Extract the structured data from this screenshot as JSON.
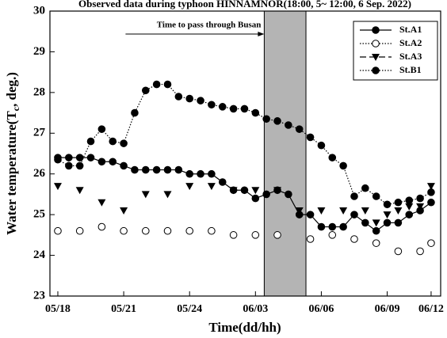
{
  "chart_data": {
    "type": "line",
    "title": "Observed data during typhoon HINNAMNOR(18:00, 5~ 12:00, 6  Sep. 2022)",
    "xlabel": "Time(dd/hh)",
    "ylabel_parts": [
      "Water temperature(T",
      "c",
      ", deg.)"
    ],
    "x": [
      0,
      1,
      2,
      3,
      4,
      5,
      6,
      7,
      8,
      9,
      10,
      11,
      12,
      13,
      14,
      15,
      16,
      17,
      18,
      19,
      20,
      21,
      22,
      23,
      24,
      25,
      26,
      27,
      28,
      29,
      30,
      31,
      32,
      33,
      34
    ],
    "xlim": [
      -0.72,
      34.87
    ],
    "xticks": [
      {
        "value": 0,
        "label": "05/18"
      },
      {
        "value": 6,
        "label": "05/21"
      },
      {
        "value": 12,
        "label": "05/24"
      },
      {
        "value": 18,
        "label": "06/03"
      },
      {
        "value": 24,
        "label": "06/06"
      },
      {
        "value": 30,
        "label": "06/09"
      },
      {
        "value": 34,
        "label": "06/12"
      }
    ],
    "ylim": [
      23,
      30
    ],
    "yticks": [
      23,
      24,
      25,
      26,
      27,
      28,
      29,
      30
    ],
    "shaded_region": {
      "x": [
        18.8,
        22.6
      ],
      "label": "Time to pass through Busan",
      "color": "#b4b4b4"
    },
    "legend_position": "upper right",
    "series": [
      {
        "name": "St.A1",
        "color": "#000000",
        "marker": "filled-circle",
        "line": "solid",
        "connected": true,
        "values": [
          26.4,
          26.4,
          26.4,
          26.4,
          26.3,
          26.3,
          26.2,
          26.1,
          26.1,
          26.1,
          26.1,
          26.1,
          26.0,
          26.0,
          26.0,
          25.8,
          25.6,
          25.6,
          25.4,
          25.5,
          25.6,
          25.5,
          25.0,
          25.0,
          24.7,
          24.7,
          24.7,
          25.0,
          24.8,
          24.6,
          24.8,
          24.8,
          25.0,
          25.1,
          25.3
        ]
      },
      {
        "name": "St.A2",
        "color": "#000000",
        "marker": "open-circle",
        "line": "dotted",
        "connected": false,
        "values": [
          24.6,
          null,
          24.6,
          null,
          24.7,
          null,
          24.6,
          null,
          24.6,
          null,
          24.6,
          null,
          24.6,
          null,
          24.6,
          null,
          24.5,
          null,
          24.5,
          null,
          24.5,
          null,
          null,
          24.4,
          null,
          24.5,
          null,
          24.4,
          null,
          24.3,
          null,
          24.1,
          null,
          24.1,
          24.3
        ]
      },
      {
        "name": "St.A3",
        "color": "#000000",
        "marker": "triangle-down",
        "line": "dashed",
        "connected": false,
        "values": [
          25.7,
          null,
          25.6,
          null,
          25.3,
          null,
          25.1,
          null,
          25.5,
          null,
          25.5,
          null,
          25.7,
          null,
          25.7,
          null,
          25.6,
          null,
          25.6,
          null,
          25.6,
          null,
          25.1,
          null,
          25.1,
          null,
          25.1,
          null,
          25.1,
          24.8,
          25.0,
          25.1,
          25.2,
          25.2,
          25.7
        ]
      },
      {
        "name": "St.B1",
        "color": "#000000",
        "marker": "filled-circle",
        "line": "dotted",
        "connected": true,
        "values": [
          26.35,
          26.2,
          26.2,
          26.8,
          27.1,
          26.8,
          26.75,
          27.5,
          28.05,
          28.2,
          28.2,
          27.9,
          27.85,
          27.8,
          27.7,
          27.65,
          27.6,
          27.6,
          27.5,
          27.35,
          27.3,
          27.2,
          27.1,
          26.9,
          26.7,
          26.4,
          26.2,
          25.45,
          25.65,
          25.45,
          25.25,
          25.3,
          25.35,
          25.4,
          25.55
        ]
      }
    ]
  }
}
